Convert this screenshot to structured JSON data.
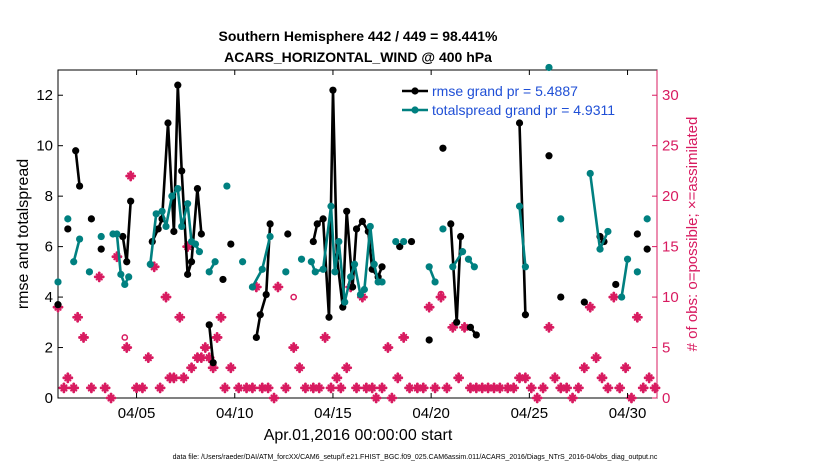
{
  "chart_data": {
    "type": "line",
    "title": "Southern Hemisphere 442 / 449 = 98.441%",
    "subtitle": "ACARS_HORIZONTAL_WIND @ 400 hPa",
    "xlabel": "Apr.01,2016 00:00:00 start",
    "ylabel": "rmse and totalspread",
    "ylabel_right": "# of obs: o=possible; ×=assimilated",
    "footer": "data file: /Users/raeder/DAI/ATM_forcXX/CAM6_setup/f.e21.FHIST_BGC.f09_025.CAM6assim.011/ACARS_2016/Diags_NTrS_2016-04/obs_diag_output.nc",
    "xlim": [
      1,
      31.5
    ],
    "ylim": [
      0,
      13
    ],
    "ylim_right": [
      0,
      32.5
    ],
    "xticks": [
      5,
      10,
      15,
      20,
      25,
      30
    ],
    "xtick_labels": [
      "04/05",
      "04/10",
      "04/15",
      "04/20",
      "04/25",
      "04/30"
    ],
    "yticks": [
      0,
      2,
      4,
      6,
      8,
      10,
      12
    ],
    "yticks_right": [
      0,
      5,
      10,
      15,
      20,
      25,
      30
    ],
    "legend_position": "top-right",
    "colors": {
      "rmse": "#000000",
      "spread": "#008080",
      "obs": "#d81b60",
      "axis": "#000000",
      "right_axis": "#d81b60"
    },
    "series": [
      {
        "name": "rmse grand pr = 5.4887",
        "key": "rmse",
        "segments": [
          [
            [
              1.0,
              3.7
            ]
          ],
          [
            [
              1.5,
              6.7
            ]
          ],
          [
            [
              1.9,
              9.8
            ],
            [
              2.1,
              8.4
            ]
          ],
          [
            [
              2.7,
              7.1
            ]
          ],
          [
            [
              3.2,
              5.9
            ]
          ],
          [
            [
              4.3,
              6.4
            ],
            [
              4.5,
              5.4
            ],
            [
              4.7,
              7.8
            ]
          ],
          [
            [
              5.8,
              6.2
            ],
            [
              6.1,
              6.7
            ],
            [
              6.3,
              7.1
            ],
            [
              6.6,
              10.9
            ],
            [
              6.9,
              6.6
            ],
            [
              7.1,
              12.4
            ],
            [
              7.3,
              9.0
            ],
            [
              7.6,
              4.9
            ],
            [
              7.8,
              5.4
            ],
            [
              8.1,
              8.3
            ],
            [
              8.3,
              6.5
            ]
          ],
          [
            [
              8.7,
              2.9
            ],
            [
              8.9,
              1.4
            ]
          ],
          [
            [
              9.4,
              4.7
            ]
          ],
          [
            [
              9.8,
              6.1
            ]
          ],
          [
            [
              11.1,
              2.4
            ],
            [
              11.3,
              3.3
            ],
            [
              11.6,
              4.1
            ],
            [
              11.8,
              6.9
            ]
          ],
          [
            [
              12.7,
              6.5
            ]
          ],
          [
            [
              14.0,
              6.2
            ],
            [
              14.2,
              6.9
            ],
            [
              14.5,
              7.1
            ],
            [
              14.8,
              3.2
            ],
            [
              15.0,
              12.2
            ],
            [
              15.2,
              5.6
            ],
            [
              15.5,
              3.6
            ],
            [
              15.7,
              7.4
            ],
            [
              16.0,
              4.4
            ],
            [
              16.2,
              6.7
            ],
            [
              16.5,
              7.0
            ],
            [
              16.8,
              6.6
            ],
            [
              17.0,
              5.1
            ],
            [
              17.3,
              4.8
            ],
            [
              17.5,
              5.2
            ]
          ],
          [
            [
              18.4,
              6.0
            ]
          ],
          [
            [
              19.0,
              6.2
            ]
          ],
          [
            [
              19.9,
              2.3
            ]
          ],
          [
            [
              20.6,
              9.9
            ]
          ],
          [
            [
              21.0,
              6.9
            ],
            [
              21.3,
              3.0
            ],
            [
              21.5,
              6.4
            ]
          ],
          [
            [
              22.0,
              2.8
            ],
            [
              22.3,
              2.5
            ]
          ],
          [
            [
              24.5,
              10.9
            ],
            [
              24.8,
              3.3
            ]
          ],
          [
            [
              26.0,
              9.6
            ]
          ],
          [
            [
              26.6,
              4.0
            ]
          ],
          [
            [
              27.8,
              3.8
            ]
          ],
          [
            [
              28.6,
              6.4
            ],
            [
              28.8,
              6.2
            ]
          ],
          [
            [
              29.4,
              4.5
            ]
          ],
          [
            [
              30.5,
              6.5
            ]
          ],
          [
            [
              31.0,
              5.9
            ]
          ]
        ]
      },
      {
        "name": "totalspread grand pr = 4.9311",
        "key": "spread",
        "segments": [
          [
            [
              1.0,
              4.6
            ]
          ],
          [
            [
              1.5,
              7.1
            ]
          ],
          [
            [
              1.8,
              5.4
            ],
            [
              2.1,
              6.3
            ]
          ],
          [
            [
              2.6,
              5.0
            ]
          ],
          [
            [
              3.2,
              6.4
            ]
          ],
          [
            [
              3.8,
              6.5
            ]
          ],
          [
            [
              4.0,
              6.5
            ],
            [
              4.2,
              4.9
            ],
            [
              4.4,
              4.5
            ],
            [
              4.6,
              4.8
            ]
          ],
          [
            [
              5.7,
              5.3
            ],
            [
              6.0,
              7.3
            ],
            [
              6.3,
              7.4
            ],
            [
              6.5,
              6.8
            ],
            [
              6.8,
              8.0
            ],
            [
              7.1,
              8.3
            ],
            [
              7.3,
              6.8
            ],
            [
              7.6,
              7.7
            ],
            [
              7.8,
              6.2
            ],
            [
              8.0,
              6.1
            ],
            [
              8.2,
              5.8
            ]
          ],
          [
            [
              8.7,
              5.0
            ],
            [
              9.0,
              5.4
            ]
          ],
          [
            [
              9.6,
              8.4
            ]
          ],
          [
            [
              10.4,
              5.4
            ]
          ],
          [
            [
              10.9,
              4.4
            ],
            [
              11.4,
              5.1
            ],
            [
              11.8,
              6.4
            ]
          ],
          [
            [
              12.6,
              5.0
            ]
          ],
          [
            [
              13.4,
              5.5
            ]
          ],
          [
            [
              13.9,
              5.4
            ],
            [
              14.1,
              5.0
            ],
            [
              14.5,
              5.1
            ],
            [
              14.9,
              7.6
            ],
            [
              15.1,
              5.0
            ],
            [
              15.3,
              6.2
            ],
            [
              15.6,
              3.8
            ],
            [
              15.9,
              4.8
            ],
            [
              16.1,
              5.3
            ],
            [
              16.4,
              4.1
            ],
            [
              16.6,
              4.3
            ],
            [
              16.9,
              6.8
            ],
            [
              17.1,
              5.3
            ],
            [
              17.3,
              4.6
            ],
            [
              17.5,
              4.6
            ]
          ],
          [
            [
              18.2,
              6.2
            ]
          ],
          [
            [
              18.6,
              6.2
            ]
          ],
          [
            [
              19.9,
              5.2
            ],
            [
              20.2,
              4.6
            ]
          ],
          [
            [
              20.6,
              6.7
            ]
          ],
          [
            [
              21.1,
              5.2
            ],
            [
              21.6,
              5.8
            ]
          ],
          [
            [
              21.9,
              5.5
            ],
            [
              22.2,
              5.2
            ]
          ],
          [
            [
              24.5,
              7.6
            ],
            [
              24.8,
              5.2
            ]
          ],
          [
            [
              26.0,
              13.1
            ]
          ],
          [
            [
              26.6,
              7.1
            ]
          ],
          [
            [
              28.1,
              8.9
            ],
            [
              28.6,
              5.9
            ],
            [
              29.0,
              6.6
            ]
          ],
          [
            [
              29.7,
              4.0
            ],
            [
              30.0,
              5.5
            ]
          ],
          [
            [
              30.5,
              5.0
            ]
          ],
          [
            [
              31.0,
              7.1
            ]
          ]
        ]
      }
    ],
    "obs_assimilated": [
      [
        1.0,
        9
      ],
      [
        1.3,
        1
      ],
      [
        1.5,
        2
      ],
      [
        1.8,
        1
      ],
      [
        2.0,
        8
      ],
      [
        2.3,
        6
      ],
      [
        2.7,
        1
      ],
      [
        3.1,
        12
      ],
      [
        3.4,
        1
      ],
      [
        3.7,
        0
      ],
      [
        4.0,
        14
      ],
      [
        4.5,
        5
      ],
      [
        4.7,
        22
      ],
      [
        5.0,
        1
      ],
      [
        5.3,
        1
      ],
      [
        5.6,
        4
      ],
      [
        5.9,
        13
      ],
      [
        6.2,
        1
      ],
      [
        6.5,
        10
      ],
      [
        6.7,
        2
      ],
      [
        6.9,
        2
      ],
      [
        7.2,
        8
      ],
      [
        7.4,
        2
      ],
      [
        7.6,
        15
      ],
      [
        7.8,
        3
      ],
      [
        8.1,
        4
      ],
      [
        8.3,
        4
      ],
      [
        8.5,
        5
      ],
      [
        8.7,
        4
      ],
      [
        8.9,
        3
      ],
      [
        9.1,
        6
      ],
      [
        9.3,
        8
      ],
      [
        9.5,
        1
      ],
      [
        9.8,
        3
      ],
      [
        10.2,
        1
      ],
      [
        10.6,
        1
      ],
      [
        10.9,
        1
      ],
      [
        11.1,
        11
      ],
      [
        11.4,
        1
      ],
      [
        11.7,
        1
      ],
      [
        12.0,
        0
      ],
      [
        12.2,
        11
      ],
      [
        12.6,
        1
      ],
      [
        13.0,
        5
      ],
      [
        13.3,
        3
      ],
      [
        13.6,
        1
      ],
      [
        14.0,
        1
      ],
      [
        14.3,
        1
      ],
      [
        14.6,
        6
      ],
      [
        14.9,
        1
      ],
      [
        15.2,
        2
      ],
      [
        15.4,
        1
      ],
      [
        15.7,
        3
      ],
      [
        15.9,
        11
      ],
      [
        16.2,
        1
      ],
      [
        16.5,
        10
      ],
      [
        16.7,
        1
      ],
      [
        17.0,
        1
      ],
      [
        17.2,
        0
      ],
      [
        17.5,
        1
      ],
      [
        17.8,
        5
      ],
      [
        18.0,
        0
      ],
      [
        18.3,
        2
      ],
      [
        18.6,
        6
      ],
      [
        18.9,
        1
      ],
      [
        19.3,
        1
      ],
      [
        19.6,
        1
      ],
      [
        19.9,
        9
      ],
      [
        20.2,
        1
      ],
      [
        20.5,
        10
      ],
      [
        20.8,
        1
      ],
      [
        21.1,
        7
      ],
      [
        21.4,
        2
      ],
      [
        21.7,
        7
      ],
      [
        22.0,
        1
      ],
      [
        22.3,
        1
      ],
      [
        22.6,
        1
      ],
      [
        22.9,
        1
      ],
      [
        23.2,
        1
      ],
      [
        23.5,
        1
      ],
      [
        23.9,
        1
      ],
      [
        24.2,
        1
      ],
      [
        24.5,
        2
      ],
      [
        24.8,
        2
      ],
      [
        25.1,
        1
      ],
      [
        25.4,
        0
      ],
      [
        25.7,
        1
      ],
      [
        26.0,
        7
      ],
      [
        26.3,
        2
      ],
      [
        26.6,
        1
      ],
      [
        26.9,
        1
      ],
      [
        27.2,
        0
      ],
      [
        27.5,
        1
      ],
      [
        27.8,
        3
      ],
      [
        28.1,
        9
      ],
      [
        28.4,
        4
      ],
      [
        28.7,
        2
      ],
      [
        29.0,
        1
      ],
      [
        29.3,
        10
      ],
      [
        29.6,
        1
      ],
      [
        29.9,
        3
      ],
      [
        30.2,
        0
      ],
      [
        30.5,
        8
      ],
      [
        30.8,
        1
      ],
      [
        31.1,
        2
      ],
      [
        31.4,
        1
      ]
    ],
    "obs_possible": [
      [
        4.4,
        6
      ],
      [
        8.2,
        4
      ],
      [
        13.0,
        10
      ],
      [
        20.5,
        10.3
      ]
    ]
  }
}
